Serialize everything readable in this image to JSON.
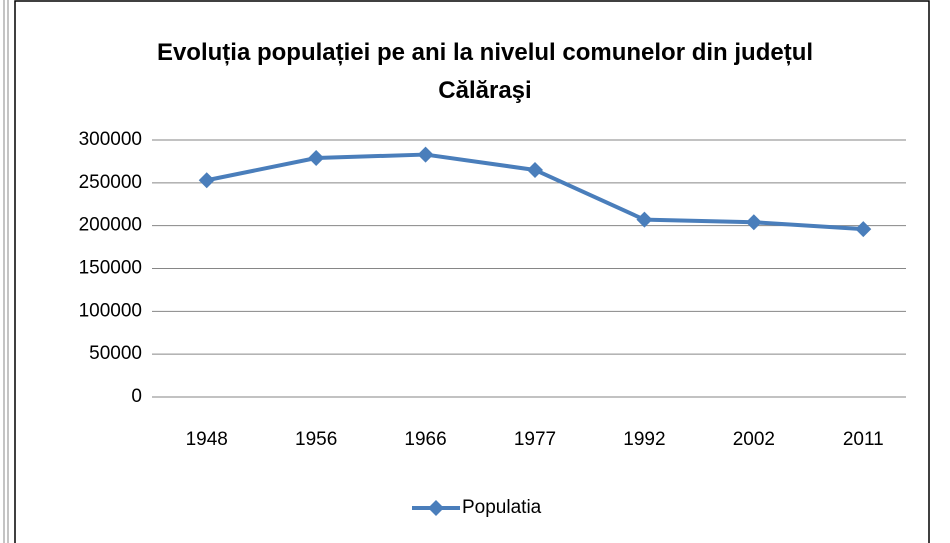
{
  "chart_data": {
    "type": "line",
    "title": "Evoluția populației pe ani la nivelul comunelor din județul Călăraşi",
    "categories": [
      "1948",
      "1956",
      "1966",
      "1977",
      "1992",
      "2002",
      "2011"
    ],
    "series": [
      {
        "name": "Populatia",
        "color": "#4a7ebb",
        "values": [
          253000,
          279000,
          283000,
          265000,
          207000,
          204000,
          196000
        ]
      }
    ],
    "ylim": [
      0,
      300000
    ],
    "yticks": [
      0,
      50000,
      100000,
      150000,
      200000,
      250000,
      300000
    ],
    "grid": true,
    "legend": "bottom"
  }
}
